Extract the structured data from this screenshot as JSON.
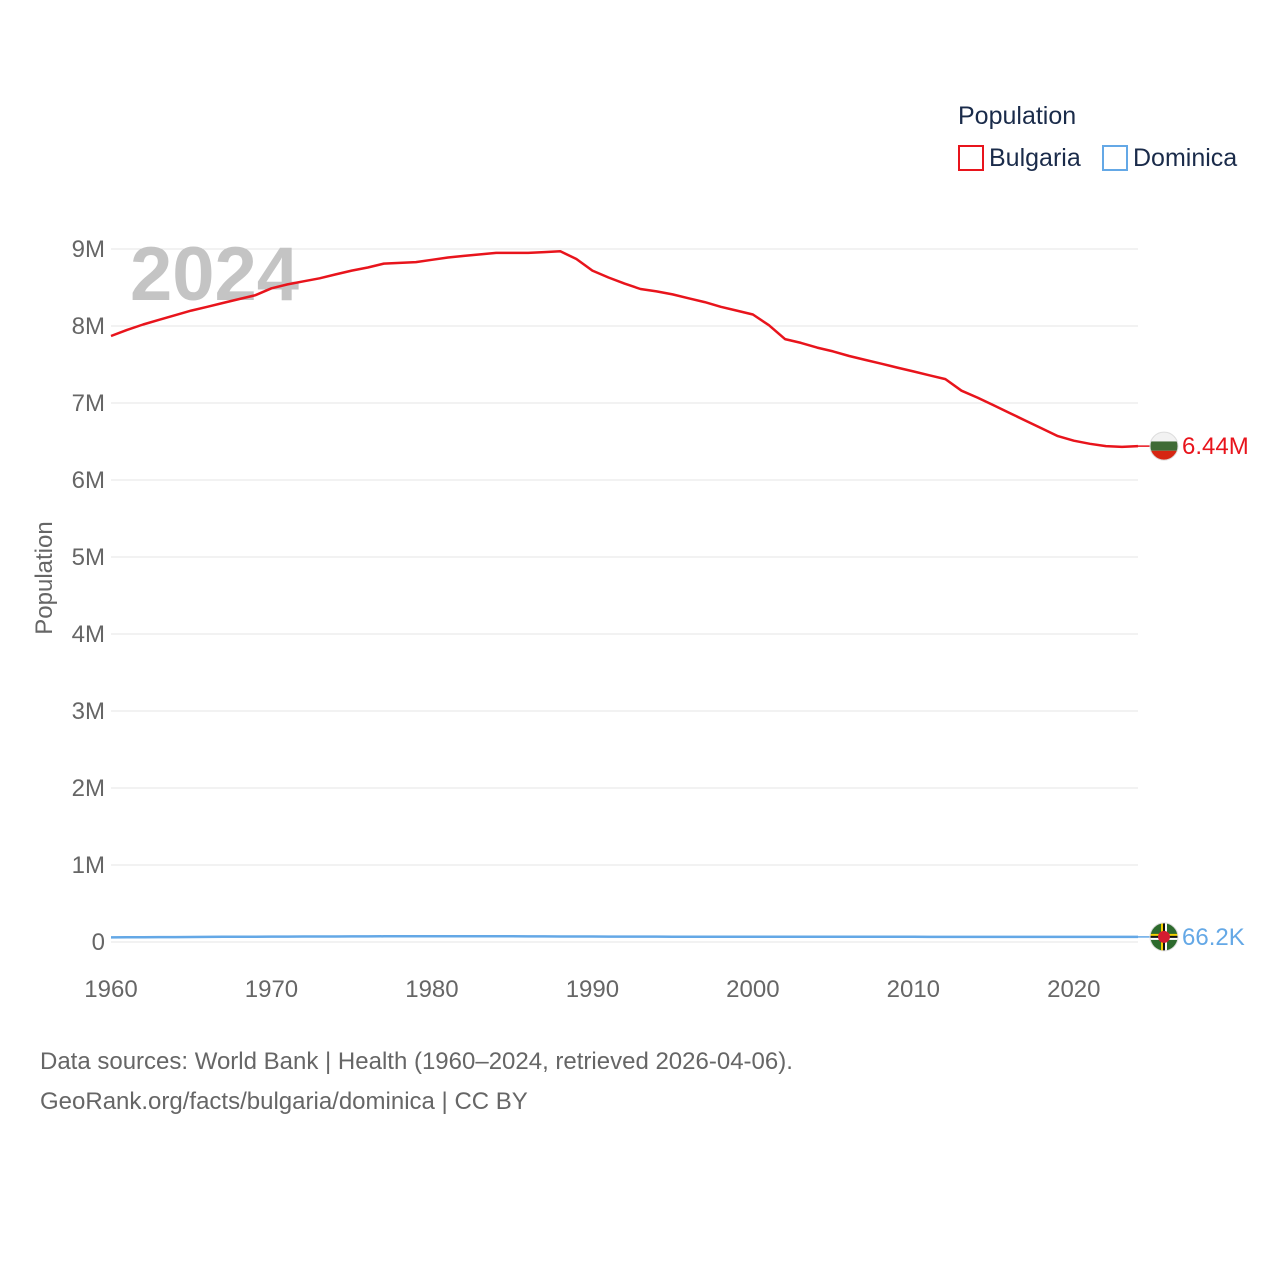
{
  "chart_data": {
    "type": "line",
    "title": "",
    "year_label": "2024",
    "xlabel": "",
    "ylabel": "Population",
    "xlim": [
      1960,
      2024
    ],
    "ylim": [
      0,
      9000000
    ],
    "x_ticks": [
      1960,
      1970,
      1980,
      1990,
      2000,
      2010,
      2020
    ],
    "y_ticks": [
      {
        "value": 0,
        "label": "0"
      },
      {
        "value": 1000000,
        "label": "1M"
      },
      {
        "value": 2000000,
        "label": "2M"
      },
      {
        "value": 3000000,
        "label": "3M"
      },
      {
        "value": 4000000,
        "label": "4M"
      },
      {
        "value": 5000000,
        "label": "5M"
      },
      {
        "value": 6000000,
        "label": "6M"
      },
      {
        "value": 7000000,
        "label": "7M"
      },
      {
        "value": 8000000,
        "label": "8M"
      },
      {
        "value": 9000000,
        "label": "9M"
      }
    ],
    "grid": true,
    "legend": {
      "title": "Population",
      "position": "top-right"
    },
    "x": [
      1960,
      1961,
      1962,
      1963,
      1964,
      1965,
      1966,
      1967,
      1968,
      1969,
      1970,
      1971,
      1972,
      1973,
      1974,
      1975,
      1976,
      1977,
      1978,
      1979,
      1980,
      1981,
      1982,
      1983,
      1984,
      1985,
      1986,
      1987,
      1988,
      1989,
      1990,
      1991,
      1992,
      1993,
      1994,
      1995,
      1996,
      1997,
      1998,
      1999,
      2000,
      2001,
      2002,
      2003,
      2004,
      2005,
      2006,
      2007,
      2008,
      2009,
      2010,
      2011,
      2012,
      2013,
      2014,
      2015,
      2016,
      2017,
      2018,
      2019,
      2020,
      2021,
      2022,
      2023,
      2024
    ],
    "series": [
      {
        "name": "Bulgaria",
        "color": "#e8141c",
        "end_label": "6.44M",
        "values": [
          7870000,
          7950000,
          8020000,
          8080000,
          8140000,
          8200000,
          8250000,
          8300000,
          8350000,
          8400000,
          8490000,
          8540000,
          8580000,
          8620000,
          8670000,
          8720000,
          8760000,
          8810000,
          8820000,
          8830000,
          8860000,
          8890000,
          8910000,
          8930000,
          8950000,
          8950000,
          8950000,
          8960000,
          8970000,
          8870000,
          8720000,
          8630000,
          8550000,
          8480000,
          8450000,
          8410000,
          8360000,
          8310000,
          8250000,
          8200000,
          8150000,
          8010000,
          7830000,
          7780000,
          7720000,
          7670000,
          7610000,
          7560000,
          7510000,
          7460000,
          7410000,
          7360000,
          7310000,
          7160000,
          7070000,
          6970000,
          6870000,
          6770000,
          6670000,
          6570000,
          6510000,
          6470000,
          6440000,
          6430000,
          6440000
        ]
      },
      {
        "name": "Dominica",
        "color": "#64a8e6",
        "end_label": "66.2K",
        "values": [
          60000,
          61000,
          62000,
          63000,
          64000,
          65000,
          66000,
          67000,
          68000,
          69000,
          70000,
          70500,
          71000,
          71500,
          72000,
          72500,
          73000,
          73500,
          74000,
          74500,
          75000,
          75000,
          74800,
          74500,
          74000,
          73500,
          73000,
          72500,
          72000,
          71500,
          71000,
          70500,
          70000,
          69800,
          69500,
          69300,
          69000,
          68800,
          68600,
          68400,
          68200,
          68000,
          67800,
          67600,
          67500,
          67400,
          67300,
          67200,
          67100,
          67000,
          66900,
          66800,
          66700,
          66600,
          66600,
          66500,
          66500,
          66400,
          66400,
          66300,
          66300,
          66300,
          66200,
          66200,
          66200
        ]
      }
    ]
  },
  "footer": {
    "line1": "Data sources: World Bank | Health (1960–2024, retrieved 2026-04-06).",
    "line2": "GeoRank.org/facts/bulgaria/dominica | CC BY"
  },
  "icons": {
    "bulgaria_flag": "bulgaria-flag-icon",
    "dominica_flag": "dominica-flag-icon"
  }
}
